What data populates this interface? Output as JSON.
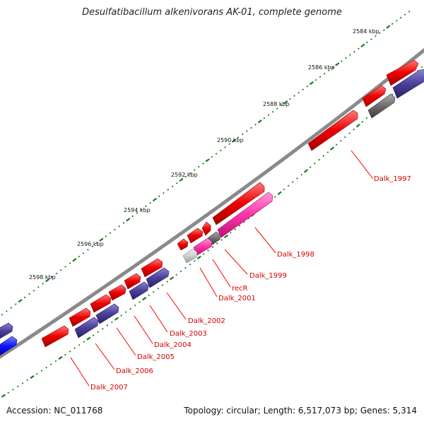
{
  "title": "Desulfatibacillum alkenivorans AK-01, complete genome",
  "footer": {
    "accession": "Accession: NC_011768",
    "summary": "Topology: circular; Length: 6,517,073 bp; Genes: 5,314"
  },
  "scale_labels": [
    "2584 kbp",
    "2586 kbp",
    "2588 kbp",
    "2590 kbp",
    "2592 kbp",
    "2594 kbp",
    "2596 kbp",
    "2598 kbp"
  ],
  "gene_labels": [
    "Dalk_1997",
    "Dalk_1998",
    "Dalk_1999",
    "recR",
    "Dalk_2001",
    "Dalk_2002",
    "Dalk_2003",
    "Dalk_2004",
    "Dalk_2005",
    "Dalk_2006",
    "Dalk_2007"
  ],
  "colors": {
    "forward_gene": "#ee0000",
    "reverse_gene": "#4b3f99",
    "pink_gene": "#ff33aa",
    "gray_gene": "#6e6e6e",
    "light_gray_gene": "#bdbdbd",
    "blue_gene": "#0a14ff",
    "backbone": "#8a8a8a",
    "ticks": "#1a7a1a",
    "label_line": "#ff0000"
  }
}
